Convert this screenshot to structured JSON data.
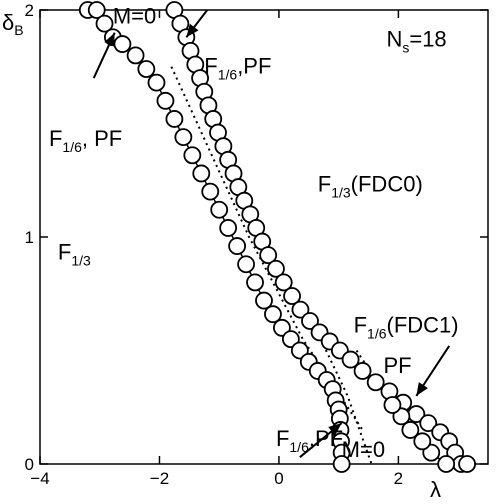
{
  "chart_data": {
    "type": "scatter",
    "title": "",
    "xlabel": "λ",
    "ylabel": "δ",
    "ylabel_sub": "B",
    "xlim": [
      -4,
      3.5
    ],
    "ylim": [
      0,
      2
    ],
    "x_ticks": [
      -4,
      -2,
      0,
      2
    ],
    "x_tick_labels": [
      "−4",
      "−2",
      "0",
      "2"
    ],
    "y_ticks": [
      0,
      1,
      2
    ],
    "y_tick_labels": [
      "0",
      "1",
      "2"
    ],
    "grid": false,
    "legend": "none",
    "colors": {
      "marker_fill": "#ffffff",
      "marker_edge": "#000000",
      "line": "#000000"
    },
    "series": [
      {
        "style": "open-circle",
        "points": [
          [
            -3.2,
            2.0
          ],
          [
            -3.05,
            2.0
          ],
          [
            -2.92,
            1.94
          ],
          [
            -2.78,
            1.88
          ],
          [
            -2.62,
            1.85
          ],
          [
            -2.4,
            1.8
          ],
          [
            -2.22,
            1.74
          ],
          [
            -2.05,
            1.68
          ],
          [
            -1.9,
            1.6
          ],
          [
            -1.75,
            1.52
          ],
          [
            -1.6,
            1.44
          ],
          [
            -1.45,
            1.36
          ],
          [
            -1.3,
            1.28
          ],
          [
            -1.15,
            1.2
          ],
          [
            -1.0,
            1.12
          ],
          [
            -0.85,
            1.04
          ],
          [
            -0.7,
            0.96
          ],
          [
            -0.55,
            0.88
          ],
          [
            -0.4,
            0.8
          ],
          [
            -0.25,
            0.72
          ],
          [
            -0.1,
            0.66
          ],
          [
            0.05,
            0.6
          ],
          [
            0.2,
            0.55
          ],
          [
            0.35,
            0.5
          ],
          [
            0.5,
            0.45
          ],
          [
            0.65,
            0.41
          ],
          [
            0.8,
            0.37
          ],
          [
            0.9,
            0.33
          ],
          [
            0.95,
            0.28
          ],
          [
            1.0,
            0.24
          ],
          [
            1.02,
            0.2
          ],
          [
            1.03,
            0.15
          ],
          [
            1.04,
            0.1
          ],
          [
            1.05,
            0.05
          ],
          [
            1.05,
            0.0
          ]
        ]
      },
      {
        "style": "open-circle",
        "points": [
          [
            -1.75,
            2.0
          ],
          [
            -1.65,
            1.94
          ],
          [
            -1.55,
            1.88
          ],
          [
            -1.48,
            1.82
          ],
          [
            -1.4,
            1.76
          ],
          [
            -1.32,
            1.7
          ],
          [
            -1.25,
            1.64
          ],
          [
            -1.18,
            1.58
          ],
          [
            -1.1,
            1.52
          ],
          [
            -1.02,
            1.46
          ],
          [
            -0.93,
            1.4
          ],
          [
            -0.85,
            1.34
          ],
          [
            -0.76,
            1.28
          ],
          [
            -0.68,
            1.22
          ],
          [
            -0.58,
            1.16
          ],
          [
            -0.48,
            1.1
          ],
          [
            -0.38,
            1.04
          ],
          [
            -0.28,
            0.98
          ],
          [
            -0.18,
            0.92
          ],
          [
            -0.05,
            0.86
          ],
          [
            0.08,
            0.8
          ],
          [
            0.22,
            0.74
          ],
          [
            0.36,
            0.68
          ],
          [
            0.52,
            0.63
          ],
          [
            0.68,
            0.58
          ],
          [
            0.85,
            0.54
          ],
          [
            1.02,
            0.5
          ],
          [
            1.2,
            0.46
          ],
          [
            1.4,
            0.41
          ],
          [
            1.62,
            0.36
          ],
          [
            1.85,
            0.32
          ],
          [
            2.08,
            0.27
          ],
          [
            2.3,
            0.22
          ],
          [
            2.5,
            0.18
          ],
          [
            2.7,
            0.14
          ],
          [
            2.85,
            0.1
          ],
          [
            2.95,
            0.05
          ],
          [
            3.05,
            0.0
          ],
          [
            3.15,
            0.0
          ],
          [
            2.8,
            0.0
          ],
          [
            2.55,
            0.05
          ],
          [
            2.4,
            0.1
          ],
          [
            2.2,
            0.15
          ],
          [
            2.05,
            0.21
          ],
          [
            1.9,
            0.26
          ]
        ]
      }
    ],
    "dotted_lines": [
      {
        "points": [
          [
            -1.8,
            1.75
          ],
          [
            -0.5,
            1.0
          ],
          [
            0.4,
            0.55
          ],
          [
            1.4,
            0.15
          ]
        ]
      },
      {
        "points": [
          [
            0.7,
            0.55
          ],
          [
            1.15,
            0.3
          ],
          [
            1.55,
            0.0
          ]
        ]
      },
      {
        "points": [
          [
            1.3,
            0.5
          ],
          [
            1.8,
            0.3
          ],
          [
            2.2,
            0.12
          ]
        ]
      }
    ],
    "arrows": [
      {
        "from": [
          -1.2,
          2.0
        ],
        "to": [
          -1.55,
          1.88
        ]
      },
      {
        "from": [
          -3.1,
          1.7
        ],
        "to": [
          -2.75,
          1.9
        ]
      },
      {
        "from": [
          2.85,
          0.52
        ],
        "to": [
          2.3,
          0.3
        ]
      },
      {
        "from": [
          0.35,
          0.03
        ],
        "to": [
          1.05,
          0.18
        ]
      }
    ],
    "annotations": [
      {
        "text": "M=0",
        "x": -2.78,
        "y": 1.94,
        "sub": ""
      },
      {
        "text": "F",
        "sub": "1/6",
        "tail": ",PF",
        "x": -1.25,
        "y": 1.72
      },
      {
        "text": "N",
        "sub": "s",
        "tail": "=18",
        "x": 1.8,
        "y": 1.84
      },
      {
        "text": "F",
        "sub": "1/6",
        "tail": ", PF",
        "x": -3.85,
        "y": 1.4
      },
      {
        "text": "F",
        "sub": "1/3",
        "tail": "(FDC0)",
        "x": 0.65,
        "y": 1.2
      },
      {
        "text": "F",
        "sub": "1/3",
        "tail": "",
        "x": -3.7,
        "y": 0.9
      },
      {
        "text": "F",
        "sub": "1/6",
        "tail": "(FDC1)",
        "x": 1.25,
        "y": 0.58
      },
      {
        "text": "PF",
        "x": 1.75,
        "y": 0.4,
        "sub": "",
        "tail": ""
      },
      {
        "text": "F",
        "sub": "1/6",
        "tail": ",PF",
        "x": -0.05,
        "y": 0.08
      },
      {
        "text": "M=0",
        "x": 1.05,
        "y": 0.03,
        "sub": "",
        "tail": ""
      }
    ]
  }
}
